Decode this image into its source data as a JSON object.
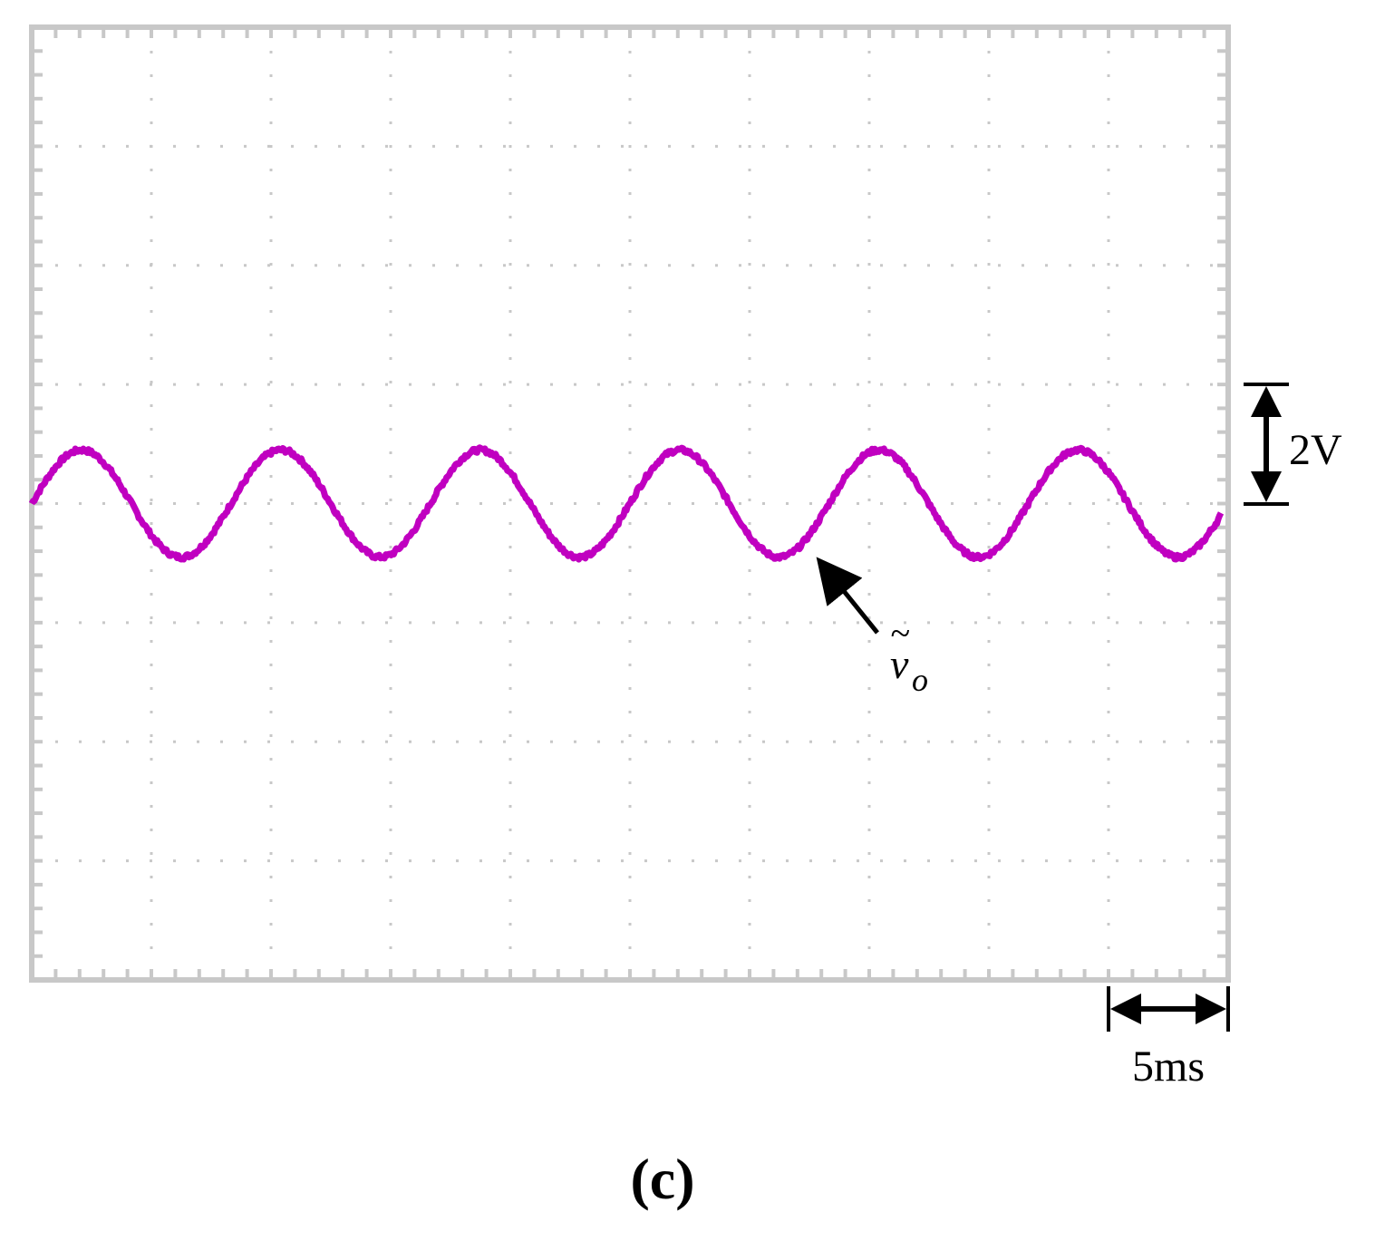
{
  "chart_data": {
    "type": "line",
    "title": "",
    "xlabel": "",
    "ylabel": "",
    "grid": true,
    "divisions": {
      "x": 10,
      "y": 8
    },
    "subdivisions_per_division": 5,
    "x_unit": "ms",
    "y_unit": "V",
    "x_scale_label": "5ms",
    "y_scale_label": "2V",
    "x_scale_value": 5,
    "y_scale_value": 2,
    "xlim": [
      0,
      50
    ],
    "ylim": [
      -8,
      8
    ],
    "series": [
      {
        "name": "",
        "waveform": "sine",
        "frequency_hz": 120,
        "period_ms": 8.33,
        "amplitude_v": 0.9,
        "offset_v": 0.0,
        "phase_deg": 0,
        "noise_v": 0.04,
        "color": "#c000c0"
      }
    ],
    "annotations": [
      {
        "kind": "arrow-label",
        "text_base": "v",
        "text_accent": "~",
        "text_subscript": "o",
        "target_x_ms": 32.8,
        "target_y_v": -0.85
      }
    ]
  },
  "panel_label": "(c)",
  "colors": {
    "trace": "#c000c0",
    "grid": "#c8c8c8",
    "frame": "#c8c8c8",
    "annotation": "#000000"
  }
}
